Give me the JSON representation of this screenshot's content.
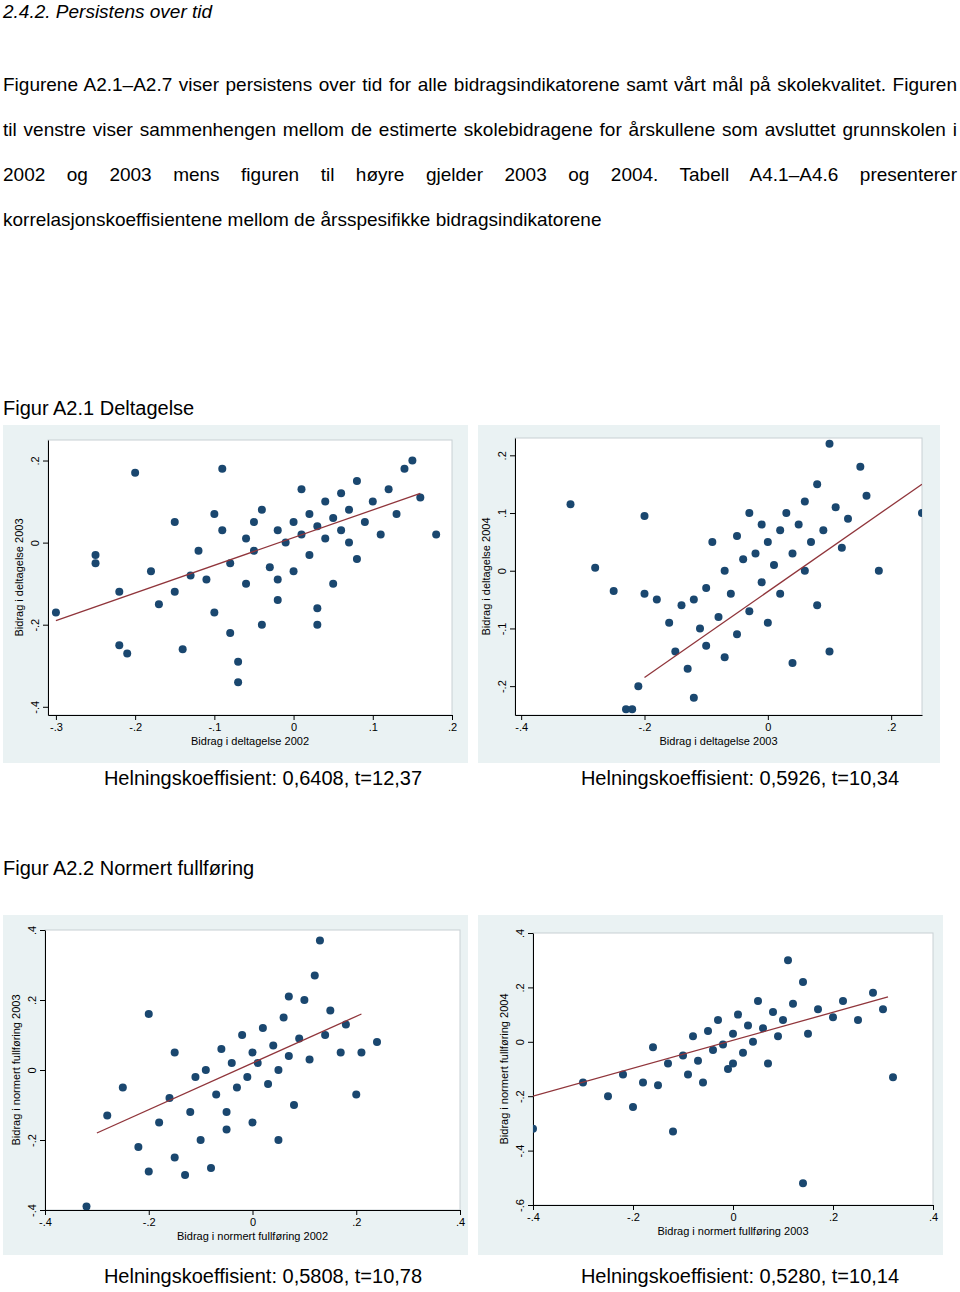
{
  "heading": "2.4.2. Persistens over tid",
  "paragraph": "Figurene A2.1–A2.7 viser persistens over tid for alle bidragsindikatorene samt vårt mål på skolekvalitet. Figuren til venstre viser sammenhengen mellom de estimerte skolebidragene for årskullene som avsluttet grunnskolen i 2002 og 2003 mens figuren til høyre gjelder 2003 og 2004. Tabell A4.1–A4.6 presenterer korrelasjonskoeffisientene mellom de årsspesifikke bidragsindikatorene",
  "figure_titles": [
    "Figur A2.1 Deltagelse",
    "Figur A2.2 Normert fullføring"
  ],
  "chart_data": [
    {
      "type": "scatter",
      "x_label": "Bidrag i deltagelse 2002",
      "y_label": "Bidrag i deltagelse 2003",
      "caption": "Helningskoeffisient: 0,6408, t=12,37",
      "xlim": [
        -0.31,
        0.2
      ],
      "ylim": [
        -0.42,
        0.25
      ],
      "xticks": [
        {
          "value": -0.3,
          "label": "-.3"
        },
        {
          "value": -0.2,
          "label": "-.2"
        },
        {
          "value": -0.1,
          "label": "-.1"
        },
        0,
        {
          "value": 0.1,
          "label": ".1"
        },
        {
          "value": 0.2,
          "label": ".2"
        }
      ],
      "yticks": [
        {
          "value": -0.4,
          "label": "-.4"
        },
        {
          "value": -0.2,
          "label": "-.2"
        },
        0,
        {
          "value": 0.2,
          "label": ".2"
        }
      ],
      "series": [
        {
          "type": "scatter",
          "marker": "circle",
          "color": "#1a476f",
          "x": [
            -0.3,
            -0.25,
            -0.25,
            -0.22,
            -0.22,
            -0.21,
            -0.2,
            -0.18,
            -0.17,
            -0.15,
            -0.15,
            -0.14,
            -0.13,
            -0.12,
            -0.11,
            -0.1,
            -0.1,
            -0.09,
            -0.09,
            -0.08,
            -0.08,
            -0.07,
            -0.07,
            -0.06,
            -0.06,
            -0.05,
            -0.05,
            -0.04,
            -0.04,
            -0.03,
            -0.02,
            -0.02,
            -0.01,
            0,
            0,
            0.01,
            0.01,
            0.02,
            0.02,
            0.03,
            0.03,
            0.04,
            0.04,
            0.05,
            0.05,
            0.06,
            0.06,
            0.07,
            0.08,
            0.08,
            0.09,
            0.1,
            0.11,
            0.12,
            0.13,
            0.14,
            0.15,
            0.16,
            0.18,
            0.03,
            -0.02,
            0.07
          ],
          "values": [
            -0.17,
            -0.03,
            -0.05,
            -0.12,
            -0.25,
            -0.27,
            0.17,
            -0.07,
            -0.15,
            -0.12,
            0.05,
            -0.26,
            -0.08,
            -0.02,
            -0.09,
            0.07,
            -0.17,
            0.03,
            0.18,
            -0.22,
            -0.05,
            -0.29,
            -0.34,
            0.01,
            -0.1,
            0.05,
            -0.02,
            -0.2,
            0.08,
            -0.06,
            0.03,
            -0.14,
            0,
            0.05,
            -0.07,
            0.02,
            0.13,
            -0.03,
            0.07,
            0.04,
            -0.16,
            0.1,
            0.01,
            0.06,
            -0.1,
            0.03,
            0.12,
            0.08,
            -0.04,
            0.15,
            0.05,
            0.1,
            0.02,
            0.13,
            0.07,
            0.18,
            0.2,
            0.11,
            0.02,
            -0.2,
            -0.09,
            0
          ]
        },
        {
          "type": "line",
          "line_style": "solid",
          "color": "#90353b",
          "x": [
            -0.3,
            0.16
          ],
          "values": [
            -0.19,
            0.12
          ]
        }
      ]
    },
    {
      "type": "scatter",
      "x_label": "Bidrag i deltagelse 2003",
      "y_label": "Bidrag i deltagelse 2004",
      "caption": "Helningskoeffisient: 0,5926, t=10,34",
      "xlim": [
        -0.41,
        0.25
      ],
      "ylim": [
        -0.25,
        0.23
      ],
      "xticks": [
        {
          "value": -0.4,
          "label": "-.4"
        },
        {
          "value": -0.2,
          "label": "-.2"
        },
        0,
        {
          "value": 0.2,
          "label": ".2"
        }
      ],
      "yticks": [
        {
          "value": -0.2,
          "label": "-.2"
        },
        {
          "value": -0.1,
          "label": "-.1"
        },
        0,
        {
          "value": 0.1,
          "label": ".1"
        },
        {
          "value": 0.2,
          "label": ".2"
        }
      ],
      "series": [
        {
          "type": "scatter",
          "marker": "circle",
          "color": "#1a476f",
          "x": [
            -0.32,
            -0.28,
            -0.25,
            -0.23,
            -0.22,
            -0.21,
            -0.2,
            -0.2,
            -0.18,
            -0.16,
            -0.15,
            -0.14,
            -0.13,
            -0.12,
            -0.12,
            -0.11,
            -0.1,
            -0.1,
            -0.09,
            -0.08,
            -0.07,
            -0.07,
            -0.06,
            -0.05,
            -0.05,
            -0.04,
            -0.03,
            -0.03,
            -0.02,
            -0.01,
            0,
            0,
            0.01,
            0.02,
            0.02,
            0.03,
            0.04,
            0.04,
            0.05,
            0.06,
            0.06,
            0.07,
            0.08,
            0.08,
            0.09,
            0.1,
            0.11,
            0.12,
            0.13,
            0.15,
            0.16,
            0.18,
            0.25,
            0.1,
            -0.01
          ],
          "values": [
            0.115,
            0.005,
            -0.035,
            -0.24,
            -0.24,
            -0.2,
            0.095,
            -0.04,
            -0.05,
            -0.09,
            -0.14,
            -0.06,
            -0.17,
            -0.22,
            -0.05,
            -0.1,
            -0.03,
            -0.13,
            0.05,
            -0.08,
            -0.15,
            0,
            -0.04,
            0.06,
            -0.11,
            0.02,
            -0.07,
            0.1,
            0.03,
            -0.02,
            0.05,
            -0.09,
            0.01,
            0.07,
            -0.04,
            0.1,
            0.03,
            -0.16,
            0.08,
            0,
            0.12,
            0.05,
            0.15,
            -0.06,
            0.07,
            0.22,
            0.11,
            0.04,
            0.09,
            0.18,
            0.13,
            0,
            0.1,
            -0.14,
            0.08
          ]
        },
        {
          "type": "line",
          "line_style": "solid",
          "color": "#90353b",
          "x": [
            -0.2,
            0.25
          ],
          "values": [
            -0.185,
            0.15
          ]
        }
      ]
    },
    {
      "type": "scatter",
      "x_label": "Bidrag i normert fullføring 2002",
      "y_label": "Bidrag i normert fullføring 2003",
      "caption": "Helningskoeffisient: 0,5808, t=10,78",
      "xlim": [
        -0.4,
        0.4
      ],
      "ylim": [
        -0.4,
        0.4
      ],
      "xticks": [
        {
          "value": -0.4,
          "label": "-.4"
        },
        {
          "value": -0.2,
          "label": "-.2"
        },
        0,
        {
          "value": 0.2,
          "label": ".2"
        },
        {
          "value": 0.4,
          "label": ".4"
        }
      ],
      "yticks": [
        {
          "value": -0.4,
          "label": "-.4"
        },
        {
          "value": -0.2,
          "label": "-.2"
        },
        0,
        {
          "value": 0.2,
          "label": ".2"
        },
        {
          "value": 0.4,
          "label": ".4"
        }
      ],
      "series": [
        {
          "type": "scatter",
          "marker": "circle",
          "color": "#1a476f",
          "x": [
            -0.32,
            -0.28,
            -0.25,
            -0.22,
            -0.2,
            -0.2,
            -0.18,
            -0.16,
            -0.15,
            -0.15,
            -0.13,
            -0.12,
            -0.11,
            -0.1,
            -0.09,
            -0.08,
            -0.07,
            -0.06,
            -0.05,
            -0.04,
            -0.03,
            -0.02,
            -0.01,
            0,
            0,
            0.01,
            0.02,
            0.03,
            0.04,
            0.05,
            0.06,
            0.07,
            0.08,
            0.09,
            0.1,
            0.11,
            0.12,
            0.13,
            0.14,
            0.15,
            0.17,
            0.18,
            0.2,
            0.21,
            0.24,
            0.05,
            -0.05,
            0.07
          ],
          "values": [
            -0.39,
            -0.13,
            -0.05,
            -0.22,
            0.16,
            -0.29,
            -0.15,
            -0.08,
            -0.25,
            0.05,
            -0.3,
            -0.12,
            -0.02,
            -0.2,
            0,
            -0.28,
            -0.07,
            0.06,
            -0.12,
            0.02,
            -0.05,
            0.1,
            -0.02,
            0.05,
            -0.15,
            0.02,
            0.12,
            -0.04,
            0.07,
            0,
            0.15,
            0.04,
            -0.1,
            0.09,
            0.2,
            0.03,
            0.27,
            0.37,
            0.1,
            0.17,
            0.05,
            0.13,
            -0.07,
            0.05,
            0.08,
            -0.2,
            -0.17,
            0.21
          ]
        },
        {
          "type": "line",
          "line_style": "solid",
          "color": "#90353b",
          "x": [
            -0.3,
            0.21
          ],
          "values": [
            -0.18,
            0.16
          ]
        }
      ]
    },
    {
      "type": "scatter",
      "x_label": "Bidrag i normert fullføring 2003",
      "y_label": "Bidrag i normert fullføring 2004",
      "caption": "Helningskoeffisient: 0,5280, t=10,14",
      "xlim": [
        -0.4,
        0.4
      ],
      "ylim": [
        -0.6,
        0.4
      ],
      "xticks": [
        {
          "value": -0.4,
          "label": "-.4"
        },
        {
          "value": -0.2,
          "label": "-.2"
        },
        0,
        {
          "value": 0.2,
          "label": ".2"
        },
        {
          "value": 0.4,
          "label": ".4"
        }
      ],
      "yticks": [
        {
          "value": -0.6,
          "label": "-.6"
        },
        {
          "value": -0.4,
          "label": "-.4"
        },
        {
          "value": -0.2,
          "label": "-.2"
        },
        0,
        {
          "value": 0.2,
          "label": ".2"
        },
        {
          "value": 0.4,
          "label": ".4"
        }
      ],
      "series": [
        {
          "type": "scatter",
          "marker": "circle",
          "color": "#1a476f",
          "x": [
            -0.4,
            -0.3,
            -0.25,
            -0.22,
            -0.2,
            -0.18,
            -0.16,
            -0.15,
            -0.13,
            -0.12,
            -0.1,
            -0.09,
            -0.08,
            -0.07,
            -0.06,
            -0.05,
            -0.04,
            -0.03,
            -0.02,
            -0.01,
            0,
            0.01,
            0.02,
            0.03,
            0.04,
            0.05,
            0.06,
            0.07,
            0.08,
            0.09,
            0.1,
            0.11,
            0.12,
            0.14,
            0.15,
            0.17,
            0.2,
            0.22,
            0.25,
            0.28,
            0.3,
            0.32,
            0.14,
            0
          ],
          "values": [
            -0.32,
            -0.15,
            -0.2,
            -0.12,
            -0.24,
            -0.15,
            -0.02,
            -0.16,
            -0.08,
            -0.33,
            -0.05,
            -0.12,
            0.02,
            -0.07,
            -0.15,
            0.04,
            -0.03,
            0.08,
            -0.01,
            -0.1,
            0.03,
            0.1,
            -0.04,
            0.06,
            0,
            0.15,
            0.05,
            -0.08,
            0.11,
            0.02,
            0.08,
            0.3,
            0.14,
            0.22,
            0.03,
            0.12,
            0.09,
            0.15,
            0.08,
            0.18,
            0.12,
            -0.13,
            -0.52,
            -0.08
          ]
        },
        {
          "type": "line",
          "line_style": "solid",
          "color": "#90353b",
          "x": [
            -0.4,
            0.31
          ],
          "values": [
            -0.2,
            0.165
          ]
        }
      ]
    }
  ]
}
